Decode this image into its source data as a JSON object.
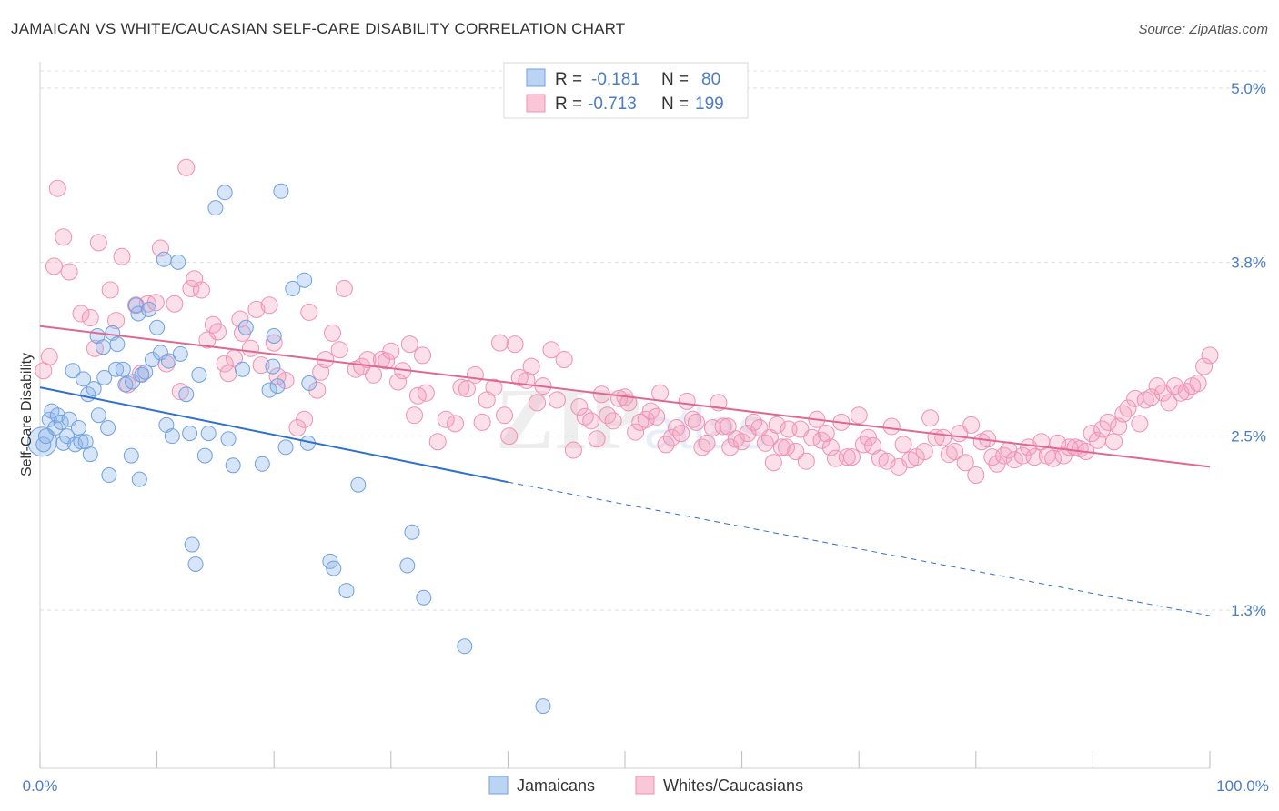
{
  "header": {
    "title": "JAMAICAN VS WHITE/CAUCASIAN SELF-CARE DISABILITY CORRELATION CHART",
    "source": "Source: ZipAtlas.com"
  },
  "legend_top": {
    "r_label": "R =",
    "n_label": "N =",
    "rows": [
      {
        "r": "-0.181",
        "n": "80"
      },
      {
        "r": "-0.713",
        "n": "199"
      }
    ]
  },
  "legend_bottom": {
    "jamaicans": "Jamaicans",
    "whites": "Whites/Caucasians"
  },
  "axes": {
    "ylabel": "Self-Care Disability",
    "x_min_label": "0.0%",
    "x_max_label": "100.0%",
    "y_ticks": [
      "5.0%",
      "3.8%",
      "2.5%",
      "1.3%"
    ]
  },
  "colors": {
    "jamaicans": "#6fa0e0",
    "jamaicans_line": "#2f6fcf",
    "whites": "#f090b0",
    "whites_line": "#e06890",
    "axis_text": "#4a7cc7"
  },
  "chart_data": {
    "type": "scatter",
    "xlabel": "",
    "ylabel": "Self-Care Disability",
    "xlim": [
      0,
      100
    ],
    "ylim": [
      0.0,
      5.0
    ],
    "x_unit": "%",
    "y_unit": "%",
    "y_ticks": [
      1.25,
      2.5,
      3.75,
      5.0
    ],
    "grid": true,
    "legend": "top-center",
    "series": [
      {
        "name": "Jamaicans",
        "r": -0.181,
        "n": 80,
        "trend": {
          "x0": 0,
          "y0": 2.85,
          "x1": 40,
          "y1": 2.17,
          "dash_to_x": 100,
          "dash_to_y": 1.21
        },
        "points": [
          [
            0.3,
            2.44
          ],
          [
            0.5,
            2.5
          ],
          [
            0.8,
            2.62
          ],
          [
            1.0,
            2.68
          ],
          [
            1.3,
            2.56
          ],
          [
            1.5,
            2.65
          ],
          [
            1.8,
            2.6
          ],
          [
            2.0,
            2.45
          ],
          [
            2.3,
            2.5
          ],
          [
            2.5,
            2.62
          ],
          [
            2.8,
            2.97
          ],
          [
            3.0,
            2.44
          ],
          [
            3.3,
            2.56
          ],
          [
            3.5,
            2.46
          ],
          [
            3.7,
            2.91
          ],
          [
            3.9,
            2.46
          ],
          [
            4.1,
            2.8
          ],
          [
            4.3,
            2.37
          ],
          [
            4.6,
            2.84
          ],
          [
            4.9,
            3.22
          ],
          [
            5.0,
            2.65
          ],
          [
            5.4,
            3.14
          ],
          [
            5.5,
            2.92
          ],
          [
            5.8,
            2.56
          ],
          [
            5.9,
            2.22
          ],
          [
            6.2,
            3.24
          ],
          [
            6.5,
            2.98
          ],
          [
            6.6,
            3.16
          ],
          [
            7.1,
            2.98
          ],
          [
            7.3,
            2.87
          ],
          [
            7.8,
            2.36
          ],
          [
            7.9,
            2.89
          ],
          [
            8.2,
            3.44
          ],
          [
            8.4,
            3.38
          ],
          [
            8.5,
            2.19
          ],
          [
            8.7,
            2.94
          ],
          [
            9.0,
            2.96
          ],
          [
            9.3,
            3.41
          ],
          [
            9.6,
            3.05
          ],
          [
            10.0,
            3.28
          ],
          [
            10.3,
            3.1
          ],
          [
            10.6,
            3.77
          ],
          [
            10.8,
            2.58
          ],
          [
            11.0,
            3.04
          ],
          [
            11.3,
            2.5
          ],
          [
            11.8,
            3.75
          ],
          [
            12.0,
            3.09
          ],
          [
            12.5,
            2.8
          ],
          [
            12.8,
            2.52
          ],
          [
            13.0,
            1.72
          ],
          [
            13.3,
            1.58
          ],
          [
            13.6,
            2.94
          ],
          [
            14.1,
            2.36
          ],
          [
            14.4,
            2.52
          ],
          [
            15.0,
            4.14
          ],
          [
            15.8,
            4.25
          ],
          [
            16.1,
            2.48
          ],
          [
            16.5,
            2.29
          ],
          [
            17.3,
            2.98
          ],
          [
            17.6,
            3.28
          ],
          [
            19.0,
            2.3
          ],
          [
            19.6,
            2.83
          ],
          [
            19.9,
            3.0
          ],
          [
            20.0,
            3.22
          ],
          [
            20.3,
            2.86
          ],
          [
            20.6,
            4.26
          ],
          [
            21.0,
            2.42
          ],
          [
            21.6,
            3.56
          ],
          [
            22.6,
            3.62
          ],
          [
            22.9,
            2.45
          ],
          [
            23.0,
            2.88
          ],
          [
            24.8,
            1.6
          ],
          [
            25.1,
            1.55
          ],
          [
            26.2,
            1.39
          ],
          [
            27.2,
            2.15
          ],
          [
            31.4,
            1.57
          ],
          [
            31.8,
            1.81
          ],
          [
            32.8,
            1.34
          ],
          [
            36.3,
            0.99
          ],
          [
            43.0,
            0.56
          ]
        ]
      },
      {
        "name": "Whites/Caucasians",
        "r": -0.713,
        "n": 199,
        "trend": {
          "x0": 0,
          "y0": 3.29,
          "x1": 100,
          "y1": 2.28
        },
        "points": [
          [
            0.3,
            2.97
          ],
          [
            0.8,
            3.07
          ],
          [
            1.2,
            3.72
          ],
          [
            1.5,
            4.28
          ],
          [
            2.0,
            3.93
          ],
          [
            2.5,
            3.68
          ],
          [
            3.5,
            3.38
          ],
          [
            4.3,
            3.35
          ],
          [
            4.7,
            3.13
          ],
          [
            5.0,
            3.89
          ],
          [
            6.0,
            3.55
          ],
          [
            6.5,
            3.33
          ],
          [
            7.0,
            3.79
          ],
          [
            7.5,
            2.87
          ],
          [
            8.2,
            3.44
          ],
          [
            8.6,
            2.95
          ],
          [
            9.2,
            3.45
          ],
          [
            9.9,
            3.46
          ],
          [
            10.3,
            3.85
          ],
          [
            10.8,
            3.02
          ],
          [
            11.5,
            3.45
          ],
          [
            12.0,
            2.82
          ],
          [
            12.5,
            4.43
          ],
          [
            12.9,
            3.56
          ],
          [
            13.2,
            3.63
          ],
          [
            13.8,
            3.55
          ],
          [
            14.3,
            3.19
          ],
          [
            14.8,
            3.3
          ],
          [
            15.2,
            3.25
          ],
          [
            15.8,
            3.02
          ],
          [
            16.1,
            2.95
          ],
          [
            16.6,
            3.06
          ],
          [
            17.1,
            3.34
          ],
          [
            17.3,
            3.24
          ],
          [
            18.0,
            3.13
          ],
          [
            18.5,
            3.41
          ],
          [
            18.9,
            3.01
          ],
          [
            19.6,
            3.44
          ],
          [
            20.0,
            3.17
          ],
          [
            20.3,
            2.93
          ],
          [
            21.0,
            2.9
          ],
          [
            22.0,
            2.56
          ],
          [
            22.6,
            2.62
          ],
          [
            23.0,
            3.39
          ],
          [
            23.7,
            2.83
          ],
          [
            24.0,
            2.96
          ],
          [
            24.4,
            3.05
          ],
          [
            25.0,
            3.24
          ],
          [
            25.6,
            3.12
          ],
          [
            26.0,
            3.56
          ],
          [
            27.0,
            2.98
          ],
          [
            27.5,
            3.0
          ],
          [
            28.0,
            3.05
          ],
          [
            28.5,
            2.94
          ],
          [
            29.2,
            3.05
          ],
          [
            29.6,
            3.04
          ],
          [
            30.0,
            3.11
          ],
          [
            30.6,
            2.89
          ],
          [
            31.0,
            2.97
          ],
          [
            31.6,
            3.16
          ],
          [
            32.0,
            2.65
          ],
          [
            32.3,
            2.79
          ],
          [
            32.7,
            3.08
          ],
          [
            33.0,
            2.81
          ],
          [
            34.0,
            2.46
          ],
          [
            34.7,
            2.62
          ],
          [
            35.5,
            2.59
          ],
          [
            36.0,
            2.85
          ],
          [
            36.5,
            2.84
          ],
          [
            37.2,
            2.94
          ],
          [
            37.8,
            2.6
          ],
          [
            38.2,
            2.76
          ],
          [
            38.8,
            2.85
          ],
          [
            39.3,
            3.17
          ],
          [
            39.7,
            2.65
          ],
          [
            40.1,
            2.5
          ],
          [
            40.6,
            3.16
          ],
          [
            41.0,
            2.92
          ],
          [
            41.6,
            2.9
          ],
          [
            42.0,
            3.0
          ],
          [
            42.5,
            2.74
          ],
          [
            43.0,
            2.86
          ],
          [
            43.7,
            3.12
          ],
          [
            44.2,
            2.76
          ],
          [
            44.8,
            3.05
          ],
          [
            45.6,
            2.4
          ],
          [
            46.1,
            2.71
          ],
          [
            46.6,
            2.64
          ],
          [
            47.1,
            2.61
          ],
          [
            47.6,
            2.48
          ],
          [
            48.0,
            2.8
          ],
          [
            48.5,
            2.65
          ],
          [
            49.0,
            2.61
          ],
          [
            49.5,
            2.77
          ],
          [
            50.0,
            2.78
          ],
          [
            50.3,
            2.74
          ],
          [
            50.9,
            2.53
          ],
          [
            51.3,
            2.6
          ],
          [
            51.8,
            2.62
          ],
          [
            52.2,
            2.68
          ],
          [
            52.7,
            2.64
          ],
          [
            53.0,
            2.81
          ],
          [
            53.5,
            2.44
          ],
          [
            54.0,
            2.49
          ],
          [
            54.4,
            2.56
          ],
          [
            54.8,
            2.52
          ],
          [
            55.3,
            2.75
          ],
          [
            55.8,
            2.62
          ],
          [
            56.1,
            2.6
          ],
          [
            56.6,
            2.42
          ],
          [
            57.0,
            2.45
          ],
          [
            57.5,
            2.56
          ],
          [
            58.0,
            2.74
          ],
          [
            58.4,
            2.57
          ],
          [
            58.8,
            2.57
          ],
          [
            59.0,
            2.42
          ],
          [
            59.5,
            2.48
          ],
          [
            60.0,
            2.46
          ],
          [
            60.5,
            2.52
          ],
          [
            61.0,
            2.6
          ],
          [
            61.5,
            2.56
          ],
          [
            62.0,
            2.45
          ],
          [
            62.4,
            2.49
          ],
          [
            62.7,
            2.31
          ],
          [
            63.0,
            2.58
          ],
          [
            63.4,
            2.42
          ],
          [
            63.8,
            2.42
          ],
          [
            64.0,
            2.55
          ],
          [
            64.6,
            2.39
          ],
          [
            65.0,
            2.55
          ],
          [
            65.5,
            2.32
          ],
          [
            66.0,
            2.49
          ],
          [
            66.4,
            2.62
          ],
          [
            66.8,
            2.47
          ],
          [
            67.2,
            2.52
          ],
          [
            67.6,
            2.42
          ],
          [
            68.0,
            2.34
          ],
          [
            68.5,
            2.6
          ],
          [
            69.0,
            2.35
          ],
          [
            69.4,
            2.35
          ],
          [
            70.0,
            2.65
          ],
          [
            70.4,
            2.44
          ],
          [
            70.8,
            2.49
          ],
          [
            71.2,
            2.43
          ],
          [
            71.8,
            2.34
          ],
          [
            72.4,
            2.32
          ],
          [
            72.8,
            2.57
          ],
          [
            73.4,
            2.28
          ],
          [
            73.8,
            2.44
          ],
          [
            74.4,
            2.33
          ],
          [
            74.9,
            2.35
          ],
          [
            75.6,
            2.39
          ],
          [
            76.1,
            2.63
          ],
          [
            76.6,
            2.49
          ],
          [
            77.2,
            2.49
          ],
          [
            77.7,
            2.37
          ],
          [
            78.2,
            2.39
          ],
          [
            78.6,
            2.52
          ],
          [
            79.1,
            2.31
          ],
          [
            79.6,
            2.58
          ],
          [
            80.0,
            2.22
          ],
          [
            80.5,
            2.46
          ],
          [
            81.0,
            2.48
          ],
          [
            81.4,
            2.35
          ],
          [
            81.8,
            2.3
          ],
          [
            82.4,
            2.36
          ],
          [
            82.8,
            2.4
          ],
          [
            83.3,
            2.33
          ],
          [
            84.0,
            2.36
          ],
          [
            84.5,
            2.42
          ],
          [
            85.0,
            2.35
          ],
          [
            85.6,
            2.46
          ],
          [
            86.1,
            2.36
          ],
          [
            86.6,
            2.34
          ],
          [
            87.0,
            2.45
          ],
          [
            87.5,
            2.36
          ],
          [
            88.0,
            2.42
          ],
          [
            88.5,
            2.42
          ],
          [
            88.9,
            2.41
          ],
          [
            89.4,
            2.39
          ],
          [
            89.9,
            2.52
          ],
          [
            90.4,
            2.47
          ],
          [
            90.8,
            2.55
          ],
          [
            91.3,
            2.6
          ],
          [
            91.8,
            2.46
          ],
          [
            92.2,
            2.57
          ],
          [
            92.6,
            2.66
          ],
          [
            93.0,
            2.7
          ],
          [
            93.6,
            2.77
          ],
          [
            94.0,
            2.59
          ],
          [
            94.5,
            2.76
          ],
          [
            95.0,
            2.78
          ],
          [
            95.5,
            2.86
          ],
          [
            96.0,
            2.81
          ],
          [
            96.5,
            2.74
          ],
          [
            97.0,
            2.86
          ],
          [
            97.5,
            2.81
          ],
          [
            98.0,
            2.82
          ],
          [
            98.5,
            2.86
          ],
          [
            99.0,
            2.88
          ],
          [
            99.5,
            3.0
          ],
          [
            100.0,
            3.08
          ]
        ]
      }
    ]
  }
}
